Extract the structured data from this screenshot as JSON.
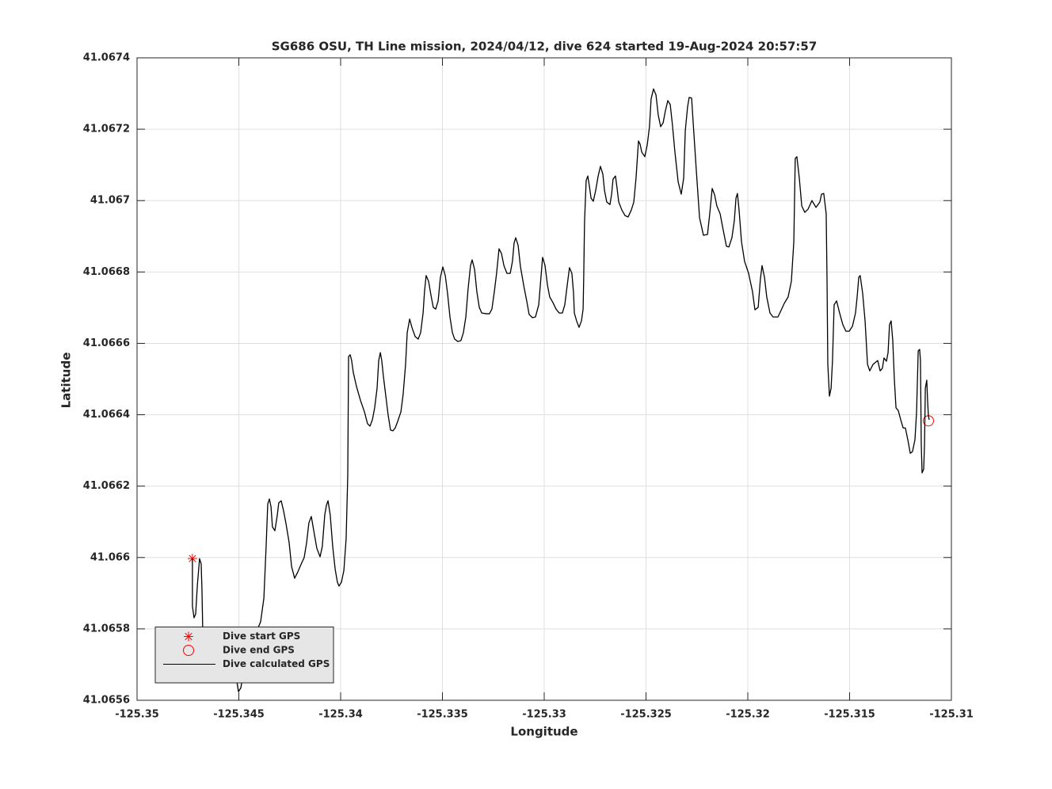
{
  "chart_data": {
    "type": "line",
    "title": "SG686 OSU, TH Line mission, 2024/04/12, dive 624 started 19-Aug-2024 20:57:57",
    "xlabel": "Longitude",
    "ylabel": "Latitude",
    "xlim": [
      -125.35,
      -125.31
    ],
    "ylim": [
      41.0656,
      41.0674
    ],
    "xticks": [
      -125.35,
      -125.345,
      -125.34,
      -125.335,
      -125.33,
      -125.325,
      -125.32,
      -125.315,
      -125.31
    ],
    "yticks": [
      41.0656,
      41.0658,
      41.066,
      41.0662,
      41.0664,
      41.0666,
      41.0668,
      41.067,
      41.0672,
      41.0674
    ],
    "grid": true,
    "legend": "lower left",
    "series": [
      {
        "name": "Dive start GPS",
        "type": "scatter",
        "marker": "asterisk",
        "color": "#ff0000",
        "x": [
          -125.34728
        ],
        "values": [
          41.065997
        ]
      },
      {
        "name": "Dive end GPS",
        "type": "scatter",
        "marker": "circle",
        "color": "#ff0000",
        "x": [
          -125.31113
        ],
        "values": [
          41.066383
        ]
      },
      {
        "name": "Dive calculated GPS",
        "type": "line",
        "color": "#000000",
        "x": [
          -125.34728,
          -125.34728,
          -125.3472,
          -125.34712,
          -125.34704,
          -125.34693,
          -125.34685,
          -125.34681,
          -125.34677,
          -125.34669,
          -125.34658,
          -125.34642,
          -125.3463,
          -125.34619,
          -125.34611,
          -125.34603,
          -125.34591,
          -125.3458,
          -125.34572,
          -125.3456,
          -125.34549,
          -125.34537,
          -125.34529,
          -125.34521,
          -125.3451,
          -125.34502,
          -125.3449,
          -125.34479,
          -125.34463,
          -125.34451,
          -125.3444,
          -125.34424,
          -125.34409,
          -125.34393,
          -125.34377,
          -125.34366,
          -125.34358,
          -125.3435,
          -125.34342,
          -125.34335,
          -125.34323,
          -125.34311,
          -125.34304,
          -125.34292,
          -125.3428,
          -125.34269,
          -125.34253,
          -125.34241,
          -125.34226,
          -125.3421,
          -125.34195,
          -125.34179,
          -125.34167,
          -125.34156,
          -125.34144,
          -125.34132,
          -125.34117,
          -125.34101,
          -125.3409,
          -125.34078,
          -125.3407,
          -125.34062,
          -125.34051,
          -125.34039,
          -125.34027,
          -125.34016,
          -125.34008,
          -125.33996,
          -125.33984,
          -125.33973,
          -125.33965,
          -125.33961,
          -125.33953,
          -125.33946,
          -125.33938,
          -125.33922,
          -125.33903,
          -125.33883,
          -125.33868,
          -125.33856,
          -125.33844,
          -125.33833,
          -125.33821,
          -125.33813,
          -125.33805,
          -125.33798,
          -125.3379,
          -125.33778,
          -125.33767,
          -125.33755,
          -125.33743,
          -125.33732,
          -125.3372,
          -125.33704,
          -125.33693,
          -125.33681,
          -125.33673,
          -125.33661,
          -125.3365,
          -125.33634,
          -125.33619,
          -125.33607,
          -125.33595,
          -125.33588,
          -125.3358,
          -125.33568,
          -125.33556,
          -125.33545,
          -125.33533,
          -125.33521,
          -125.3351,
          -125.33498,
          -125.33486,
          -125.33475,
          -125.33463,
          -125.33451,
          -125.3344,
          -125.33424,
          -125.33409,
          -125.33397,
          -125.33385,
          -125.33374,
          -125.33362,
          -125.33354,
          -125.33342,
          -125.33331,
          -125.33319,
          -125.33307,
          -125.33284,
          -125.33269,
          -125.33257,
          -125.33245,
          -125.33234,
          -125.33222,
          -125.3321,
          -125.33198,
          -125.33183,
          -125.33167,
          -125.33156,
          -125.33148,
          -125.3314,
          -125.33128,
          -125.33117,
          -125.33101,
          -125.33086,
          -125.33074,
          -125.33058,
          -125.33043,
          -125.33027,
          -125.33016,
          -125.33008,
          -125.32996,
          -125.32984,
          -125.32973,
          -125.32957,
          -125.32942,
          -125.32926,
          -125.32911,
          -125.32899,
          -125.32887,
          -125.32876,
          -125.32864,
          -125.32856,
          -125.32852,
          -125.32841,
          -125.32829,
          -125.32817,
          -125.32809,
          -125.32806,
          -125.32802,
          -125.32794,
          -125.32786,
          -125.32778,
          -125.3277,
          -125.32759,
          -125.32747,
          -125.32735,
          -125.32724,
          -125.32712,
          -125.32704,
          -125.32693,
          -125.32677,
          -125.32669,
          -125.32662,
          -125.3265,
          -125.32642,
          -125.32634,
          -125.32619,
          -125.32603,
          -125.32588,
          -125.32572,
          -125.3256,
          -125.32549,
          -125.32537,
          -125.32529,
          -125.32521,
          -125.32506,
          -125.32494,
          -125.32483,
          -125.32475,
          -125.32463,
          -125.32451,
          -125.3244,
          -125.32428,
          -125.32416,
          -125.32405,
          -125.32393,
          -125.32381,
          -125.3237,
          -125.32358,
          -125.32342,
          -125.32327,
          -125.32315,
          -125.32307,
          -125.32296,
          -125.32288,
          -125.32276,
          -125.32265,
          -125.32253,
          -125.32237,
          -125.32218,
          -125.32198,
          -125.32187,
          -125.32175,
          -125.32163,
          -125.32152,
          -125.32136,
          -125.32121,
          -125.32105,
          -125.32093,
          -125.32078,
          -125.32066,
          -125.32058,
          -125.32051,
          -125.32043,
          -125.32031,
          -125.32016,
          -125.31996,
          -125.31977,
          -125.31965,
          -125.31949,
          -125.31938,
          -125.3193,
          -125.31918,
          -125.31907,
          -125.31891,
          -125.31876,
          -125.31852,
          -125.31837,
          -125.31821,
          -125.31802,
          -125.31786,
          -125.31774,
          -125.31767,
          -125.31759,
          -125.31747,
          -125.31735,
          -125.3172,
          -125.31704,
          -125.31685,
          -125.31665,
          -125.31646,
          -125.31638,
          -125.31627,
          -125.31615,
          -125.31611,
          -125.31607,
          -125.31599,
          -125.31591,
          -125.31584,
          -125.31576,
          -125.31564,
          -125.31549,
          -125.31533,
          -125.31518,
          -125.31502,
          -125.31486,
          -125.31471,
          -125.31463,
          -125.31455,
          -125.31448,
          -125.31436,
          -125.31424,
          -125.31412,
          -125.31401,
          -125.31385,
          -125.31362,
          -125.3135,
          -125.31339,
          -125.31331,
          -125.31319,
          -125.31311,
          -125.31304,
          -125.31296,
          -125.31288,
          -125.3128,
          -125.31272,
          -125.31261,
          -125.31249,
          -125.31237,
          -125.31226,
          -125.31214,
          -125.31202,
          -125.31191,
          -125.31179,
          -125.31171,
          -125.31163,
          -125.31156,
          -125.31152,
          -125.31148,
          -125.31144,
          -125.31136,
          -125.31132,
          -125.31128,
          -125.31121,
          -125.31117,
          -125.31113,
          -125.31109
        ],
        "values": [
          41.065997,
          41.065864,
          41.065831,
          41.065842,
          41.06592,
          41.065997,
          41.065982,
          41.065908,
          41.065786,
          41.065724,
          41.065733,
          41.065753,
          41.065769,
          41.065798,
          41.065775,
          41.065742,
          41.065709,
          41.065664,
          41.065653,
          41.065653,
          41.065698,
          41.06576,
          41.065798,
          41.065764,
          41.065653,
          41.065624,
          41.065635,
          41.065675,
          41.065753,
          41.065775,
          41.065769,
          41.065775,
          41.065798,
          41.06582,
          41.065886,
          41.066031,
          41.06615,
          41.066164,
          41.066142,
          41.066086,
          41.066075,
          41.066119,
          41.066153,
          41.066159,
          41.06613,
          41.066097,
          41.066042,
          41.065975,
          41.065942,
          41.06596,
          41.06598,
          41.066,
          41.066042,
          41.066097,
          41.066115,
          41.066075,
          41.066026,
          41.066002,
          41.066031,
          41.066119,
          41.066146,
          41.066159,
          41.066119,
          41.066031,
          41.065968,
          41.065931,
          41.06592,
          41.065931,
          41.065964,
          41.066053,
          41.06623,
          41.066563,
          41.066568,
          41.066552,
          41.066519,
          41.066479,
          41.066441,
          41.066408,
          41.066375,
          41.066368,
          41.066386,
          41.066419,
          41.066474,
          41.066552,
          41.066574,
          41.066552,
          41.066508,
          41.066452,
          41.066401,
          41.066357,
          41.066355,
          41.066363,
          41.066381,
          41.066408,
          41.066457,
          41.066541,
          41.06663,
          41.066668,
          41.066645,
          41.066619,
          41.066612,
          41.06663,
          41.066685,
          41.066745,
          41.06679,
          41.066774,
          41.066734,
          41.066701,
          41.066696,
          41.066719,
          41.066785,
          41.066814,
          41.06679,
          41.066741,
          41.066674,
          41.06663,
          41.066612,
          41.066605,
          41.066608,
          41.06663,
          41.066674,
          41.066752,
          41.066818,
          41.066834,
          41.066807,
          41.066745,
          41.066701,
          41.066685,
          41.066683,
          41.066683,
          41.066696,
          41.066745,
          41.066796,
          41.066865,
          41.066852,
          41.066818,
          41.066796,
          41.066796,
          41.06683,
          41.066881,
          41.066896,
          41.066874,
          41.066816,
          41.066763,
          41.066719,
          41.066681,
          41.066672,
          41.066674,
          41.066708,
          41.066785,
          41.066841,
          41.066818,
          41.066763,
          41.06673,
          41.066714,
          41.066696,
          41.066685,
          41.066685,
          41.066708,
          41.066763,
          41.066812,
          41.066796,
          41.066741,
          41.066685,
          41.066663,
          41.066645,
          41.066663,
          41.066696,
          41.066785,
          41.066941,
          41.067056,
          41.067069,
          41.06704,
          41.067007,
          41.066998,
          41.067029,
          41.067069,
          41.067096,
          41.067074,
          41.067029,
          41.066996,
          41.066989,
          41.067018,
          41.06706,
          41.067069,
          41.067034,
          41.066996,
          41.066974,
          41.066958,
          41.066954,
          41.066974,
          41.066996,
          41.067063,
          41.067167,
          41.067158,
          41.067136,
          41.067123,
          41.067156,
          41.067207,
          41.067285,
          41.067313,
          41.067296,
          41.06724,
          41.067207,
          41.067218,
          41.067251,
          41.06728,
          41.067269,
          41.067211,
          41.067136,
          41.067052,
          41.067018,
          41.067063,
          41.067196,
          41.067262,
          41.067289,
          41.067287,
          41.067189,
          41.067085,
          41.066952,
          41.066903,
          41.066905,
          41.066963,
          41.067034,
          41.067016,
          41.066985,
          41.066963,
          41.066918,
          41.066872,
          41.06687,
          41.066896,
          41.066945,
          41.067007,
          41.06702,
          41.066974,
          41.066885,
          41.06683,
          41.066796,
          41.066745,
          41.066694,
          41.066701,
          41.066781,
          41.066818,
          41.066785,
          41.06673,
          41.066685,
          41.066674,
          41.066674,
          41.066692,
          41.066712,
          41.06673,
          41.066774,
          41.066885,
          41.067118,
          41.067123,
          41.067063,
          41.066985,
          41.066967,
          41.066976,
          41.067,
          41.066981,
          41.066996,
          41.067018,
          41.06702,
          41.066963,
          41.066785,
          41.066541,
          41.066452,
          41.066474,
          41.066552,
          41.066708,
          41.066719,
          41.066685,
          41.066652,
          41.066634,
          41.066634,
          41.066648,
          41.066685,
          41.06673,
          41.066785,
          41.06679,
          41.066741,
          41.066663,
          41.066541,
          41.066523,
          41.066541,
          41.066552,
          41.066523,
          41.06653,
          41.066559,
          41.06655,
          41.066574,
          41.066652,
          41.066663,
          41.066608,
          41.066497,
          41.066419,
          41.066412,
          41.066386,
          41.066363,
          41.066363,
          41.06633,
          41.066292,
          41.066297,
          41.06633,
          41.066408,
          41.066579,
          41.066583,
          41.066552,
          41.066319,
          41.066237,
          41.066248,
          41.066319,
          41.066474,
          41.066497,
          41.066441,
          41.066397,
          41.066386
        ]
      }
    ]
  }
}
